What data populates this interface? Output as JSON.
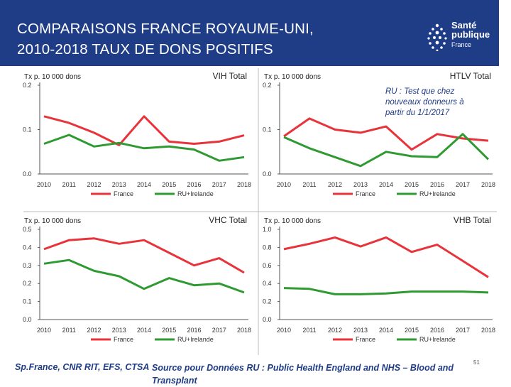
{
  "header": {
    "title_line1": "COMPARAISONS FRANCE ROYAUME-UNI,",
    "title_line2": "2010-2018 TAUX DE DONS POSITIFS",
    "logo_line1": "Santé",
    "logo_line2": "publique",
    "logo_line3": "France"
  },
  "note": "RU : Test  que chez nouveaux donneurs à partir du 1/1/2017",
  "footer": {
    "left": "Sp.France, CNR RIT,  EFS, CTSA",
    "source": "Source pour Données RU : Public Health England and NHS – Blood and Transplant",
    "page": "51"
  },
  "colors": {
    "france": "#e8333a",
    "ru": "#2f9a32",
    "header_bg": "#1f3c87"
  },
  "chart_data": [
    {
      "type": "line",
      "title": "VIH Total",
      "ylabel": "Tx p. 10 000 dons",
      "categories": [
        "2010",
        "2011",
        "2012",
        "2013",
        "2014",
        "2015",
        "2016",
        "2017",
        "2018"
      ],
      "ylim": [
        0,
        0.2
      ],
      "yticks": [
        "0.0",
        "0.1",
        "0.2"
      ],
      "series": [
        {
          "name": "France",
          "color": "#e8333a",
          "values": [
            0.13,
            0.115,
            0.093,
            0.065,
            0.13,
            0.073,
            0.068,
            0.073,
            0.087
          ]
        },
        {
          "name": "RU+Irelande",
          "color": "#2f9a32",
          "values": [
            0.068,
            0.088,
            0.062,
            0.07,
            0.058,
            0.062,
            0.055,
            0.03,
            0.038
          ]
        }
      ]
    },
    {
      "type": "line",
      "title": "HTLV Total",
      "ylabel": "Tx p. 10 000 dons",
      "categories": [
        "2010",
        "2011",
        "2012",
        "2013",
        "2014",
        "2015",
        "2016",
        "2017",
        "2018"
      ],
      "ylim": [
        0,
        0.2
      ],
      "yticks": [
        "0.0",
        "0.1",
        "0.2"
      ],
      "series": [
        {
          "name": "France",
          "color": "#e8333a",
          "values": [
            0.085,
            0.125,
            0.1,
            0.093,
            0.107,
            0.055,
            0.09,
            0.08,
            0.075
          ]
        },
        {
          "name": "RU+Irelande",
          "color": "#2f9a32",
          "values": [
            0.083,
            0.058,
            0.038,
            0.018,
            0.05,
            0.04,
            0.038,
            0.09,
            0.033
          ]
        }
      ]
    },
    {
      "type": "line",
      "title": "VHC Total",
      "ylabel": "Tx p. 10 000 dons",
      "categories": [
        "2010",
        "2011",
        "2012",
        "2013",
        "2014",
        "2015",
        "2016",
        "2017",
        "2018"
      ],
      "ylim": [
        0,
        0.5
      ],
      "yticks": [
        "0.0",
        "0.1",
        "0.2",
        "0.3",
        "0.4",
        "0.5"
      ],
      "series": [
        {
          "name": "France",
          "color": "#e8333a",
          "values": [
            0.39,
            0.44,
            0.45,
            0.42,
            0.44,
            0.37,
            0.3,
            0.34,
            0.26
          ]
        },
        {
          "name": "RU+Irelande",
          "color": "#2f9a32",
          "values": [
            0.31,
            0.33,
            0.27,
            0.24,
            0.17,
            0.23,
            0.19,
            0.2,
            0.15
          ]
        }
      ]
    },
    {
      "type": "line",
      "title": "VHB Total",
      "ylabel": "Tx p. 10 000 dons",
      "categories": [
        "2010",
        "2011",
        "2012",
        "2013",
        "2014",
        "2015",
        "2016",
        "2017",
        "2018"
      ],
      "ylim": [
        0,
        1.0
      ],
      "yticks": [
        "0.0",
        "0.2",
        "0.4",
        "0.6",
        "0.8",
        "1.0"
      ],
      "series": [
        {
          "name": "France",
          "color": "#e8333a",
          "values": [
            0.78,
            0.84,
            0.91,
            0.81,
            0.91,
            0.75,
            0.83,
            0.65,
            0.47
          ]
        },
        {
          "name": "RU+Irelande",
          "color": "#2f9a32",
          "values": [
            0.35,
            0.34,
            0.28,
            0.28,
            0.29,
            0.31,
            0.31,
            0.31,
            0.3
          ]
        }
      ]
    }
  ]
}
